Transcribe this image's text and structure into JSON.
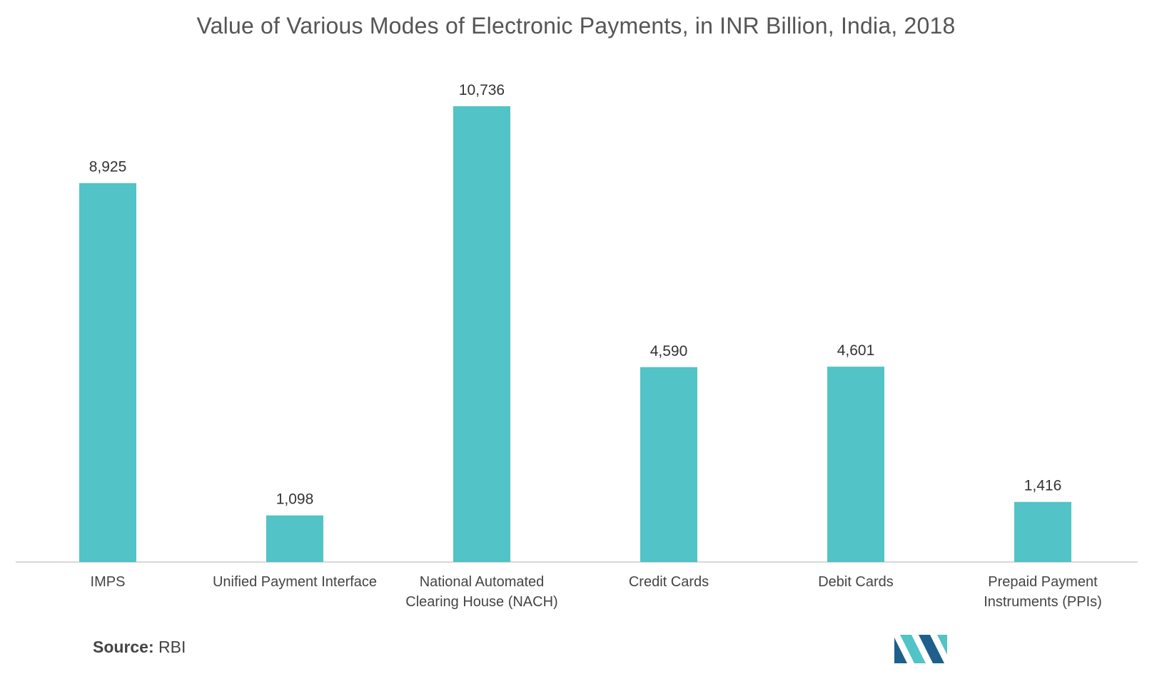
{
  "chart_data": {
    "type": "bar",
    "title": "Value of  Various Modes of Electronic Payments, in INR Billion, India, 2018",
    "categories": [
      [
        "IMPS"
      ],
      [
        "Unified Payment Interface"
      ],
      [
        "National Automated",
        "Clearing House (NACH)"
      ],
      [
        "Credit Cards"
      ],
      [
        "Debit Cards"
      ],
      [
        "Prepaid Payment",
        "Instruments (PPIs)"
      ]
    ],
    "values": [
      8925,
      1098,
      10736,
      4590,
      4601,
      1416
    ],
    "value_labels": [
      "8,925",
      "1,098",
      "10,736",
      "4,590",
      "4,601",
      "1,416"
    ],
    "xlabel": "",
    "ylabel": "",
    "ylim": [
      0,
      12000
    ],
    "grid": false,
    "bar_color": "#52c3c6",
    "axis_color": "#cccccc"
  },
  "source": {
    "key": "Source:",
    "value": "RBI"
  },
  "logo": {
    "icon": "mordor-intelligence-logo-icon",
    "color_dark": "#1f5f8b",
    "color_light": "#52c3c6"
  }
}
